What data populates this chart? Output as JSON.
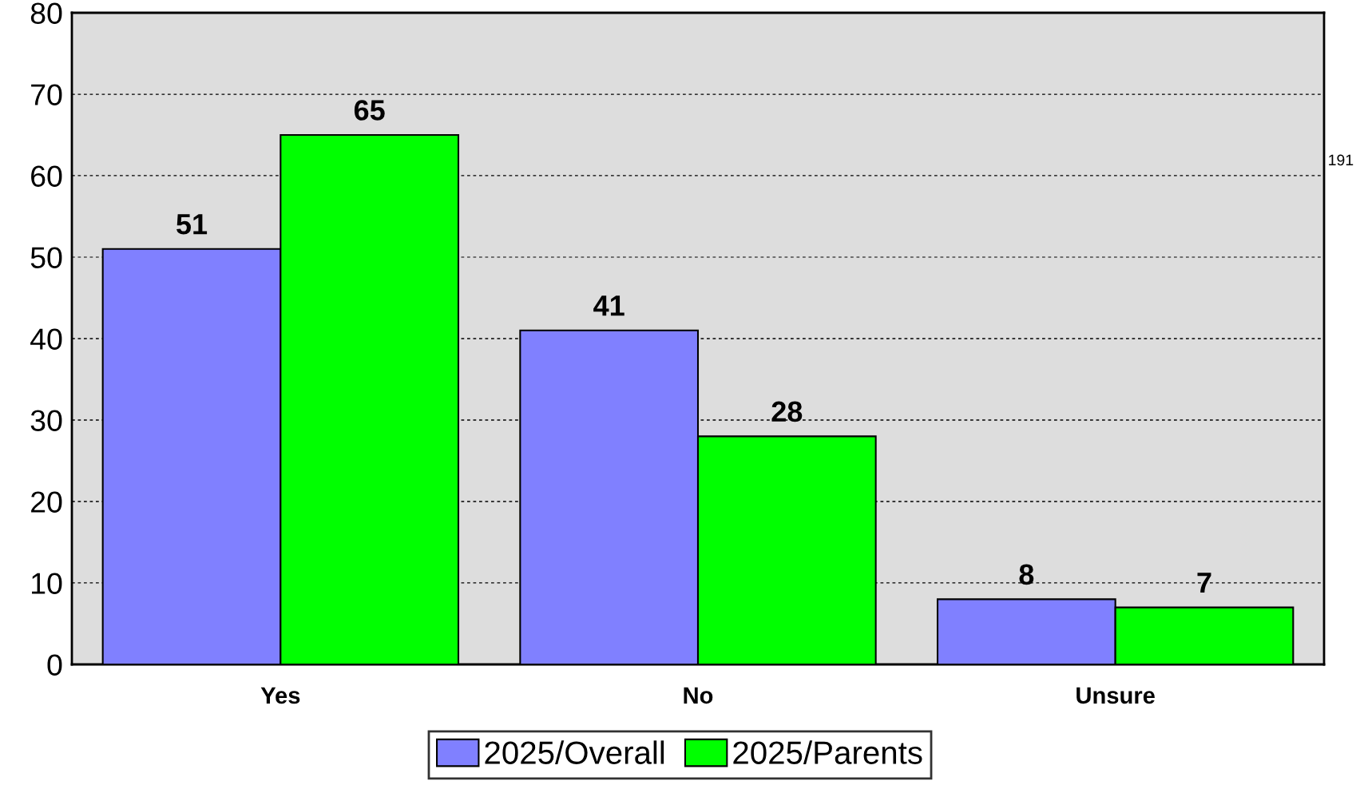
{
  "chart_data": {
    "type": "bar",
    "categories": [
      "Yes",
      "No",
      "Unsure"
    ],
    "series": [
      {
        "name": "2025/Overall",
        "color": "#8080ff",
        "values": [
          51,
          41,
          8
        ]
      },
      {
        "name": "2025/Parents",
        "color": "#00ff00",
        "values": [
          65,
          28,
          7
        ]
      }
    ],
    "ylim": [
      0,
      80
    ],
    "yticks": [
      0,
      10,
      20,
      30,
      40,
      50,
      60,
      70,
      80
    ],
    "grid": "y",
    "line_style": "dashed",
    "legend": "bottom",
    "data_labels": true,
    "annotations": [
      "191"
    ]
  }
}
